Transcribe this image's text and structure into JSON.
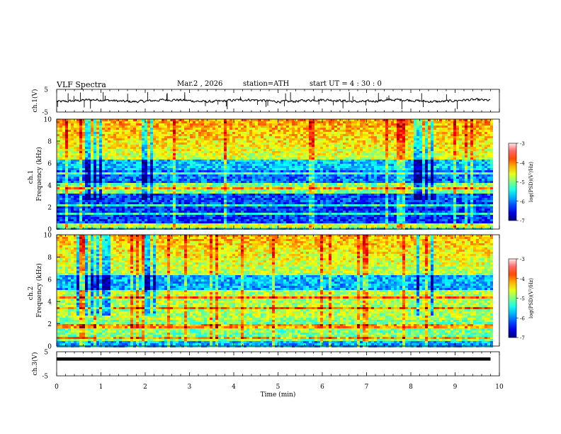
{
  "header": {
    "title": "VLF  Spectra",
    "date": "Mar.2  , 2026",
    "station": "station=ATH",
    "start": "start  UT  =   4  : 30 : 0"
  },
  "chart_data": [
    {
      "type": "line",
      "panel": "ch1-waveform",
      "ylabel": "ch.1(V)",
      "ylim": [
        -5,
        5
      ],
      "y_ticks": [
        "5",
        "-5"
      ],
      "xlim": [
        0,
        10
      ],
      "baseline": 0,
      "data_end": 9.8
    },
    {
      "type": "heatmap",
      "panel": "ch1-spectrogram",
      "ylabel_top": "ch.1",
      "ylabel": "Frequency  (kHz)",
      "ylim": [
        0,
        10
      ],
      "y_ticks": [
        "0",
        "2",
        "4",
        "6",
        "8",
        "10"
      ],
      "xlim": [
        0,
        10
      ],
      "data_end": 9.8,
      "colorbar": {
        "label": "log(PSD)(V²/Hz)",
        "range": [
          -7,
          -3
        ],
        "ticks": [
          "-3",
          "-4",
          "-5",
          "-6",
          "-7"
        ]
      },
      "noisy_segments_min": [
        [
          0.4,
          1.2
        ],
        [
          1.9,
          2.2
        ],
        [
          8.0,
          8.5
        ]
      ],
      "bands_khz": [
        0.4,
        1.5,
        2.3,
        3.8,
        5.2
      ]
    },
    {
      "type": "heatmap",
      "panel": "ch2-spectrogram",
      "ylabel_top": "ch.2",
      "ylabel": "Frequency  (kHz)",
      "ylim": [
        0,
        10
      ],
      "y_ticks": [
        "0",
        "2",
        "4",
        "6",
        "8",
        "10"
      ],
      "xlim": [
        0,
        10
      ],
      "data_end": 9.8,
      "colorbar": {
        "label": "log(PSD)(V²/Hz)",
        "range": [
          -7,
          -3
        ],
        "ticks": [
          "-3",
          "-4",
          "-5",
          "-6",
          "-7"
        ]
      },
      "noisy_segments_min": [
        [
          0.4,
          1.2
        ],
        [
          1.9,
          2.2
        ],
        [
          8.0,
          8.5
        ]
      ],
      "bands_khz": [
        0.8,
        1.9,
        3.5,
        4.5
      ]
    },
    {
      "type": "line",
      "panel": "ch3-waveform",
      "ylabel": "ch.3(V)",
      "ylim": [
        -5,
        5
      ],
      "y_ticks": [
        "5",
        "-5"
      ],
      "xlim": [
        0,
        10
      ],
      "baseline": 2,
      "data_end": 9.8
    }
  ],
  "x_axis": {
    "label": "Time  (min)",
    "ticks": [
      "0",
      "1",
      "2",
      "3",
      "4",
      "5",
      "6",
      "7",
      "8",
      "9",
      "10"
    ]
  }
}
